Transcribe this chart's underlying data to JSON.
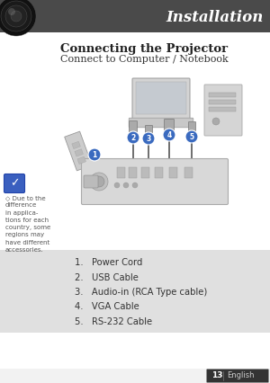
{
  "bg_color": "#ffffff",
  "header_bg": "#4a4a4a",
  "header_text": "Installation",
  "header_text_color": "#ffffff",
  "title1": "Connecting the Projector",
  "title2": "Connect to Computer / Notebook",
  "note_icon_color": "#3a5fbf",
  "note_text": "◇ Due to the\ndifference\nin applica-\ntions for each\ncountry, some\nregions may\nhave different\naccessories.",
  "note_text_color": "#555555",
  "list_items": [
    "1.   Power Cord",
    "2.   USB Cable",
    "3.   Audio-in (RCA Type cable)",
    "4.   VGA Cable",
    "5.   RS-232 Cable"
  ],
  "list_bg": "#e0e0e0",
  "list_text_color": "#333333",
  "footer_page": "13",
  "footer_text": "English",
  "footer_bg": "#333333",
  "footer_text_color": "#ffffff",
  "circle_color": "#3a6abf"
}
